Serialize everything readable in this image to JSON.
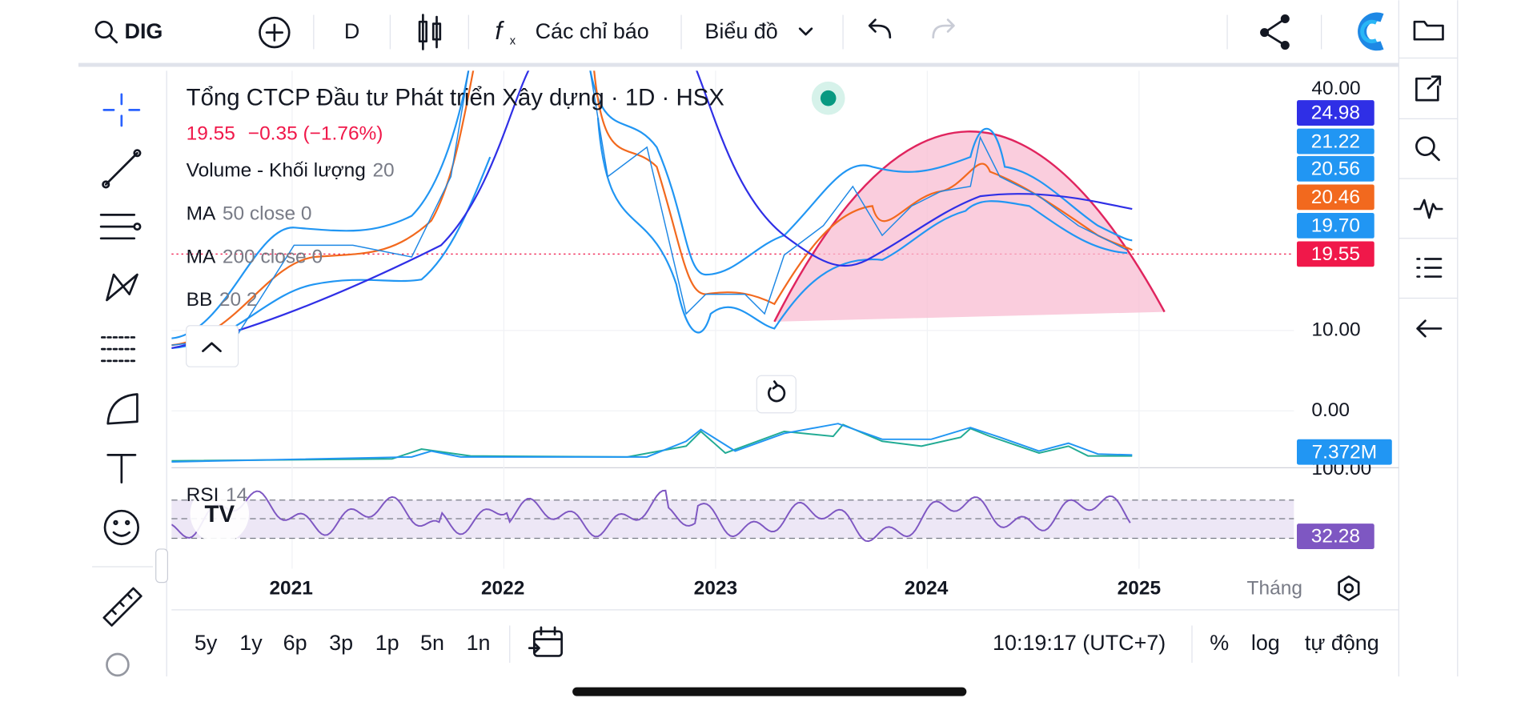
{
  "toolbar": {
    "symbol": "DIG",
    "interval": "D",
    "indicators": "Các chỉ báo",
    "chart_type": "Biểu đồ"
  },
  "legend": {
    "title": "Tổng CTCP Đầu tư Phát triển Xây dựng · 1D · HSX",
    "price": "19.55",
    "change": "−0.35 (−1.76%)",
    "studies": [
      {
        "name": "Volume - Khối lượng",
        "params": "20"
      },
      {
        "name": "MA",
        "params": "50 close 0"
      },
      {
        "name": "MA",
        "params": "200 close 0"
      },
      {
        "name": "BB",
        "params": "20 2"
      }
    ]
  },
  "price_scale": {
    "labels": [
      "40.00",
      "10.00",
      "0.00",
      "100.00"
    ],
    "badges": [
      {
        "text": "24.98",
        "color": "#2f2fe6"
      },
      {
        "text": "21.22",
        "color": "#2196f3"
      },
      {
        "text": "20.56",
        "color": "#2196f3"
      },
      {
        "text": "20.46",
        "color": "#f2691e"
      },
      {
        "text": "19.70",
        "color": "#2196f3"
      },
      {
        "text": "19.55",
        "color": "#f0184a"
      }
    ],
    "volume_badge": {
      "text": "7.372M",
      "color": "#2196f3"
    },
    "rsi_badge": {
      "text": "32.28",
      "color": "#7e57c2"
    }
  },
  "rsi": {
    "name": "RSI",
    "params": "14"
  },
  "time_scale": {
    "labels": [
      "2021",
      "2022",
      "2023",
      "2024",
      "2025"
    ],
    "unit": "Tháng"
  },
  "bottom_bar": {
    "ranges": [
      "5y",
      "1y",
      "6p",
      "3p",
      "1p",
      "5n",
      "1n"
    ],
    "clock": "10:19:17 (UTC+7)",
    "percent": "%",
    "log": "log",
    "auto": "tự động"
  }
}
